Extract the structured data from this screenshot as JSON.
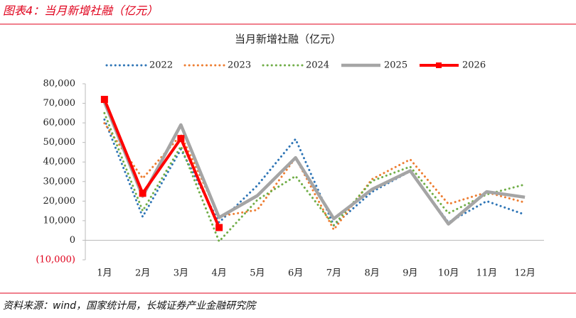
{
  "header": {
    "title": "图表4：当月新增社融（亿元）"
  },
  "footer": {
    "source": "资料来源：wind，国家统计局，长城证券产业金融研究院"
  },
  "chart_data": {
    "type": "line",
    "title": "当月新增社融（亿元）",
    "categories": [
      "1月",
      "2月",
      "3月",
      "4月",
      "5月",
      "6月",
      "7月",
      "8月",
      "9月",
      "10月",
      "11月",
      "12月"
    ],
    "series": [
      {
        "name": "2022",
        "color": "#2e75b6",
        "line_style": "dotted",
        "values": [
          61700,
          12000,
          46500,
          9100,
          28000,
          51700,
          7600,
          24700,
          35300,
          9100,
          20000,
          13100
        ]
      },
      {
        "name": "2023",
        "color": "#ed7d31",
        "line_style": "dotted",
        "values": [
          59800,
          31600,
          53800,
          12200,
          15500,
          42200,
          5400,
          31200,
          41300,
          18500,
          24500,
          19300
        ]
      },
      {
        "name": "2024",
        "color": "#70ad47",
        "line_style": "dotted",
        "values": [
          65000,
          15000,
          48000,
          -600,
          20600,
          32800,
          7700,
          30300,
          37600,
          13800,
          23400,
          28500
        ]
      },
      {
        "name": "2025",
        "color": "#a5a5a5",
        "line_style": "solid",
        "values": [
          70600,
          22500,
          59000,
          11600,
          22800,
          42200,
          11000,
          26000,
          35500,
          8300,
          24800,
          22000
        ]
      },
      {
        "name": "2026",
        "color": "#ff0000",
        "line_style": "solid",
        "marker": "square",
        "values": [
          72000,
          24000,
          52000,
          6500,
          null,
          null,
          null,
          null,
          null,
          null,
          null,
          null
        ]
      }
    ],
    "ylim": [
      -10000,
      80000
    ],
    "yticks": [
      {
        "value": -10000,
        "label": "(10,000)"
      },
      0,
      {
        "value": 10000,
        "label": "10,000"
      },
      {
        "value": 20000,
        "label": "20,000"
      },
      {
        "value": 30000,
        "label": "30,000"
      },
      {
        "value": 40000,
        "label": "40,000"
      },
      {
        "value": 50000,
        "label": "50,000"
      },
      {
        "value": 60000,
        "label": "60,000"
      },
      {
        "value": 70000,
        "label": "70,000"
      },
      {
        "value": 80000,
        "label": "80,000"
      }
    ],
    "legend": "top"
  }
}
